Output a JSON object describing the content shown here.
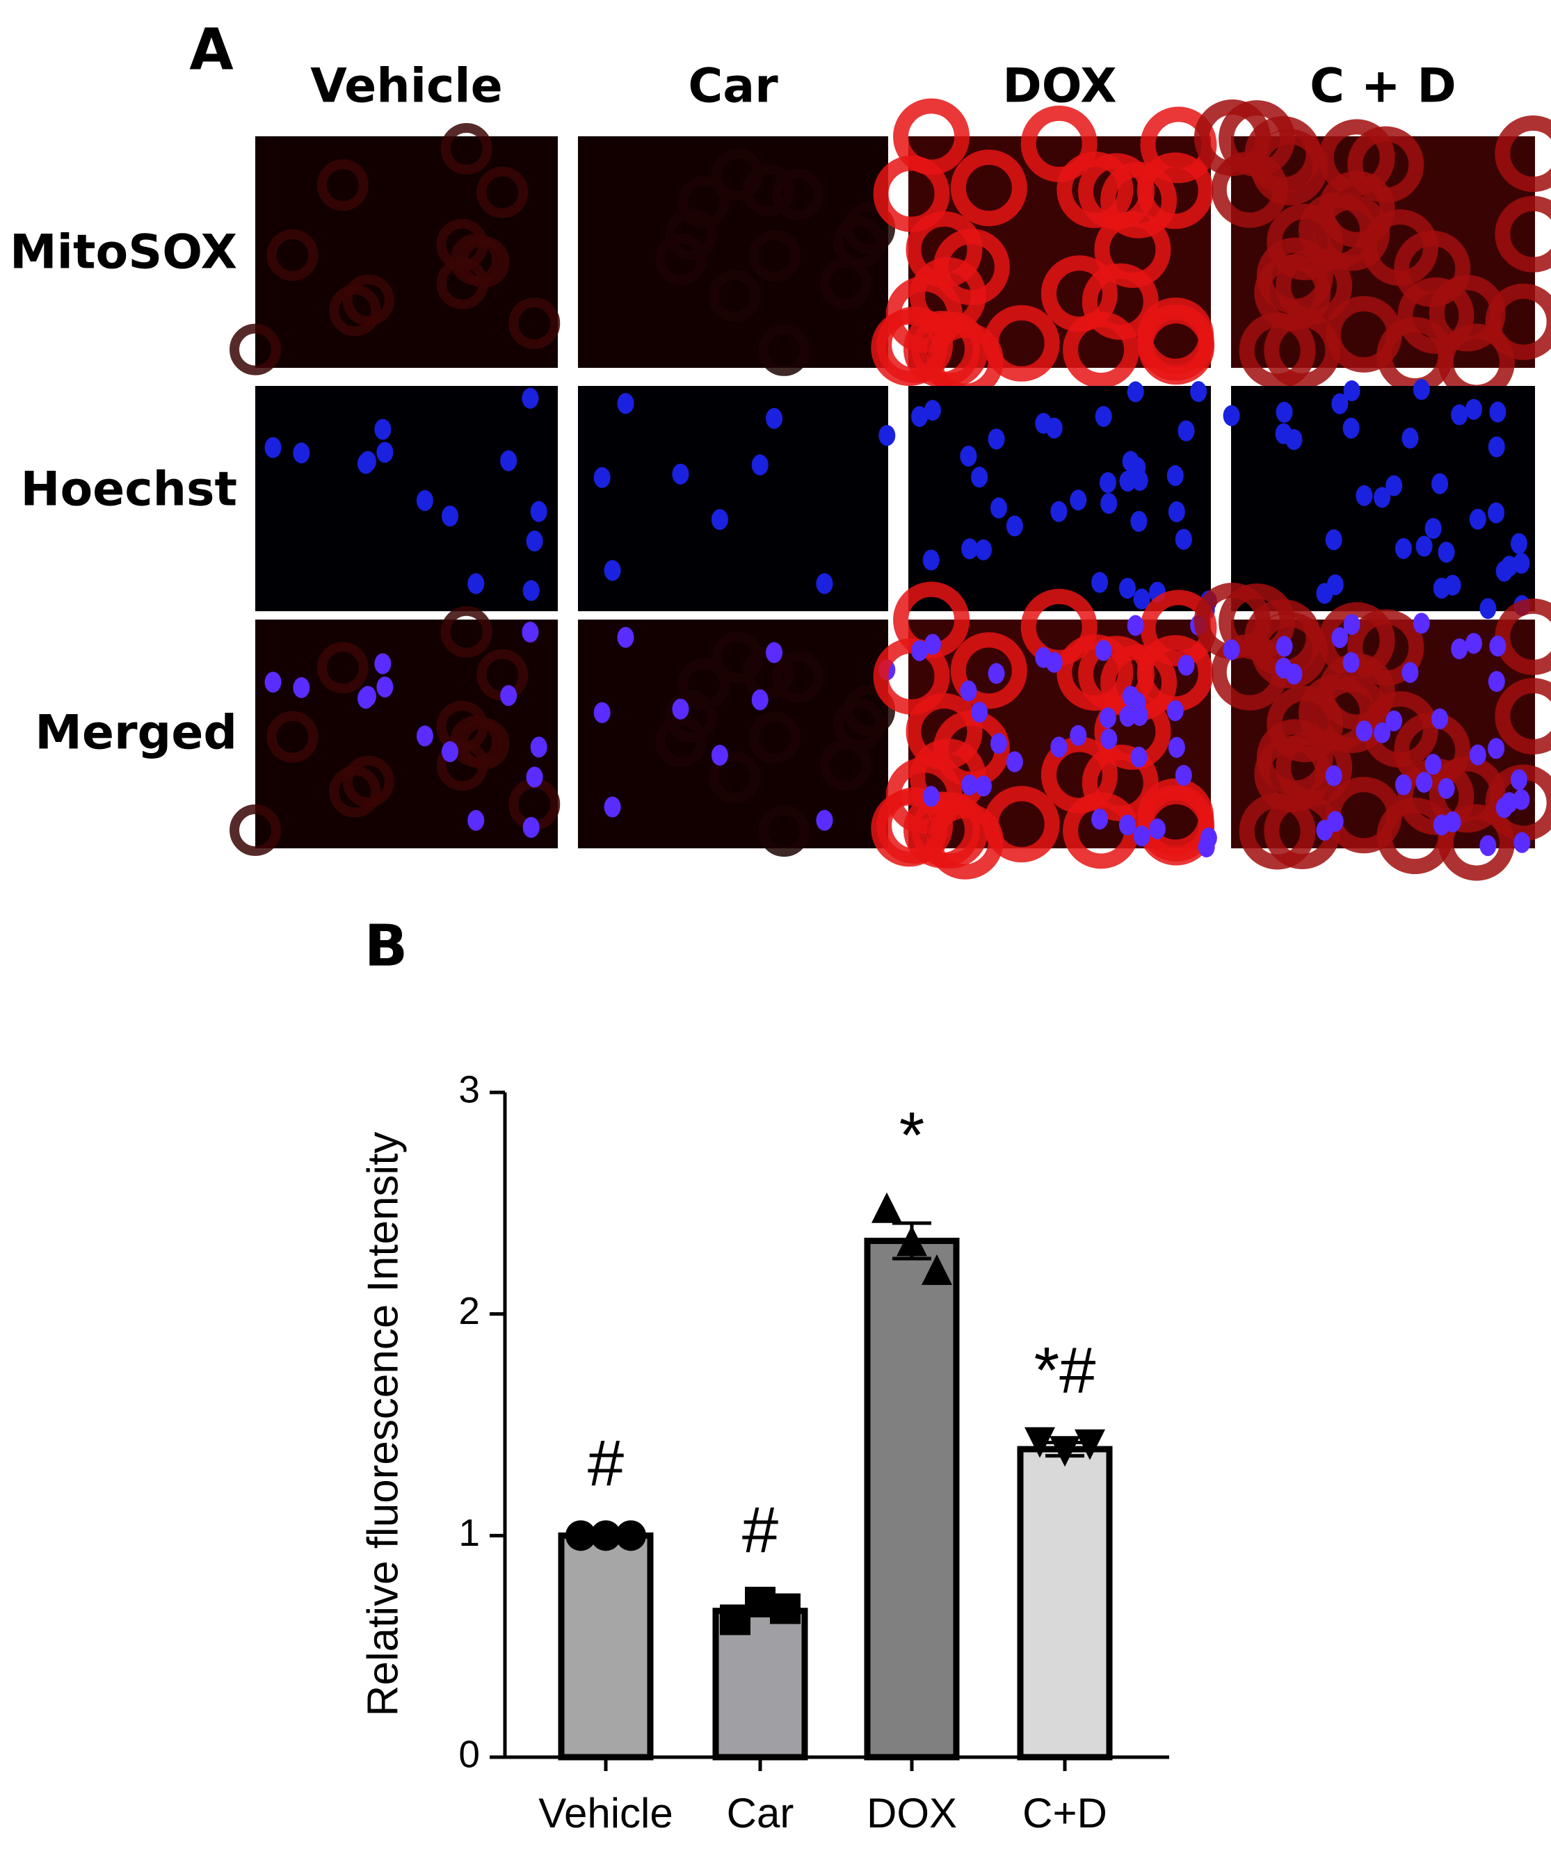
{
  "panel_a": {
    "label": "A",
    "columns": [
      "Vehicle",
      "Car",
      "DOX",
      "C + D"
    ],
    "rows": [
      "MitoSOX",
      "Hoechst",
      "Merged"
    ]
  },
  "chart_data": {
    "type": "bar",
    "panel_label": "B",
    "ylabel": "Relative fluorescence Intensity",
    "categories": [
      "Vehicle",
      "Car",
      "DOX",
      "C+D"
    ],
    "values": [
      1.0,
      0.66,
      2.33,
      1.39
    ],
    "errors": [
      0.0,
      0.02,
      0.08,
      0.03
    ],
    "points": [
      [
        1.0,
        1.0,
        1.0
      ],
      [
        0.62,
        0.7,
        0.67
      ],
      [
        2.48,
        2.33,
        2.2
      ],
      [
        1.42,
        1.38,
        1.41
      ]
    ],
    "markers": [
      "circle",
      "square",
      "triangle-up",
      "triangle-down"
    ],
    "colors": [
      "#a6a6a6",
      "#a0a0a4",
      "#808080",
      "#d9d9d9"
    ],
    "annotations": [
      "#",
      "#",
      "*",
      "*#"
    ],
    "ylim": [
      0,
      3
    ],
    "yticks": [
      0,
      1,
      2,
      3
    ]
  }
}
